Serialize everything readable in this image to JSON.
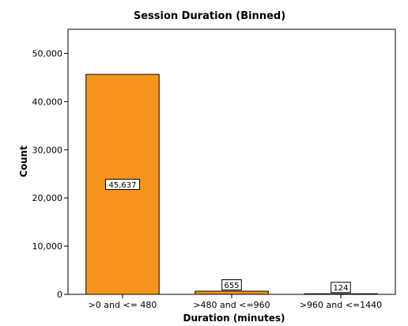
{
  "chart_data": {
    "type": "bar",
    "title": "Session Duration (Binned)",
    "xlabel": "Duration (minutes)",
    "ylabel": "Count",
    "categories": [
      ">0 and <= 480",
      ">480 and <=960",
      ">960 and <=1440"
    ],
    "values": [
      45637,
      655,
      124
    ],
    "value_labels": [
      "45,637",
      "655",
      "124"
    ],
    "ylim": [
      0,
      55000
    ],
    "yticks": [
      0,
      10000,
      20000,
      30000,
      40000,
      50000
    ],
    "ytick_labels": [
      "0",
      "10,000",
      "20,000",
      "30,000",
      "40,000",
      "50,000"
    ],
    "grid": false,
    "bar_color": "#f7941d",
    "bar_edge_color": "#000000"
  }
}
